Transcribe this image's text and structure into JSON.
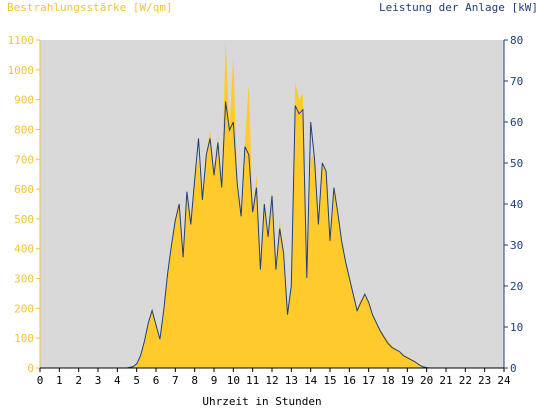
{
  "colors": {
    "background": "#ffffff",
    "plot_bg": "#d9d9d9",
    "irradiance_fill": "#ffca2c",
    "power_line": "#1f3f7a",
    "left_axis_text": "#f3c23a",
    "right_axis_text": "#1f3f7a",
    "x_axis_text": "#000000"
  },
  "chart_data": {
    "type": "area",
    "left_axis_title": "Bestrahlungsstärke [W/qm]",
    "right_axis_title": "Leistung der Anlage [kW]",
    "xlabel": "Uhrzeit in Stunden",
    "x_ticks": [
      "0",
      "1",
      "2",
      "3",
      "4",
      "5",
      "6",
      "7",
      "8",
      "9",
      "10",
      "11",
      "12",
      "13",
      "14",
      "15",
      "16",
      "17",
      "18",
      "19",
      "20",
      "21",
      "22",
      "23",
      "24"
    ],
    "left_ticks": [
      "0",
      "100",
      "200",
      "300",
      "400",
      "500",
      "600",
      "700",
      "800",
      "900",
      "1000",
      "1100"
    ],
    "right_ticks": [
      "0",
      "10",
      "20",
      "30",
      "40",
      "50",
      "60",
      "70",
      "80"
    ],
    "xlim": [
      0,
      24
    ],
    "ylim_left": [
      0,
      1100
    ],
    "ylim_right": [
      0,
      80
    ],
    "series": [
      {
        "name": "Bestrahlungsstärke [W/qm]",
        "axis": "left",
        "style": "area",
        "x": [
          0,
          4.5,
          4.8,
          5.0,
          5.2,
          5.4,
          5.6,
          5.8,
          6.0,
          6.2,
          6.4,
          6.6,
          6.8,
          7.0,
          7.2,
          7.4,
          7.6,
          7.8,
          8.0,
          8.2,
          8.4,
          8.6,
          8.8,
          9.0,
          9.2,
          9.4,
          9.6,
          9.8,
          10.0,
          10.2,
          10.4,
          10.6,
          10.8,
          11.0,
          11.2,
          11.4,
          11.6,
          11.8,
          12.0,
          12.2,
          12.4,
          12.6,
          12.8,
          13.0,
          13.2,
          13.4,
          13.6,
          13.8,
          14.0,
          14.2,
          14.4,
          14.6,
          14.8,
          15.0,
          15.2,
          15.4,
          15.6,
          15.8,
          16.0,
          16.2,
          16.4,
          16.6,
          16.8,
          17.0,
          17.2,
          17.4,
          17.6,
          17.8,
          18.0,
          18.2,
          18.4,
          18.6,
          18.8,
          19.0,
          19.2,
          19.4,
          19.6,
          19.8,
          20.0,
          20.2,
          24
        ],
        "values": [
          0,
          0,
          5,
          15,
          40,
          90,
          150,
          200,
          150,
          100,
          200,
          320,
          420,
          500,
          560,
          380,
          600,
          480,
          650,
          700,
          560,
          720,
          800,
          650,
          780,
          600,
          1100,
          800,
          1050,
          620,
          500,
          760,
          950,
          520,
          650,
          330,
          560,
          440,
          580,
          330,
          500,
          400,
          200,
          280,
          960,
          900,
          920,
          300,
          700,
          720,
          500,
          680,
          660,
          420,
          600,
          520,
          430,
          360,
          300,
          250,
          200,
          230,
          240,
          220,
          180,
          150,
          130,
          110,
          90,
          75,
          65,
          55,
          45,
          40,
          30,
          20,
          10,
          5,
          2,
          0,
          0
        ]
      },
      {
        "name": "Leistung der Anlage [kW]",
        "axis": "right",
        "style": "line",
        "x": [
          0,
          4.5,
          4.8,
          5.0,
          5.2,
          5.4,
          5.6,
          5.8,
          6.0,
          6.2,
          6.4,
          6.6,
          6.8,
          7.0,
          7.2,
          7.4,
          7.6,
          7.8,
          8.0,
          8.2,
          8.4,
          8.6,
          8.8,
          9.0,
          9.2,
          9.4,
          9.6,
          9.8,
          10.0,
          10.2,
          10.4,
          10.6,
          10.8,
          11.0,
          11.2,
          11.4,
          11.6,
          11.8,
          12.0,
          12.2,
          12.4,
          12.6,
          12.8,
          13.0,
          13.2,
          13.4,
          13.6,
          13.8,
          14.0,
          14.2,
          14.4,
          14.6,
          14.8,
          15.0,
          15.2,
          15.4,
          15.6,
          15.8,
          16.0,
          16.2,
          16.4,
          16.6,
          16.8,
          17.0,
          17.2,
          17.4,
          17.6,
          17.8,
          18.0,
          18.2,
          18.4,
          18.6,
          18.8,
          19.0,
          19.2,
          19.4,
          19.6,
          19.8,
          20.0,
          20.2,
          24
        ],
        "values": [
          0,
          0,
          0.3,
          1,
          3,
          6.5,
          11,
          14,
          10.5,
          7,
          14,
          23,
          30,
          36,
          40,
          27,
          43,
          35,
          46,
          56,
          41,
          52,
          56,
          47,
          55,
          44,
          65,
          58,
          60,
          45,
          37,
          54,
          52,
          38,
          44,
          24,
          40,
          32,
          42,
          24,
          34,
          28,
          13,
          20,
          64,
          62,
          63,
          22,
          60,
          51,
          35,
          50,
          48,
          31,
          44,
          38,
          31,
          26,
          22,
          18,
          14,
          16,
          18,
          16,
          13,
          11,
          9,
          7.5,
          6,
          5,
          4.5,
          4,
          3,
          2.5,
          2,
          1.5,
          0.8,
          0.3,
          0.1,
          0,
          0
        ]
      }
    ]
  }
}
